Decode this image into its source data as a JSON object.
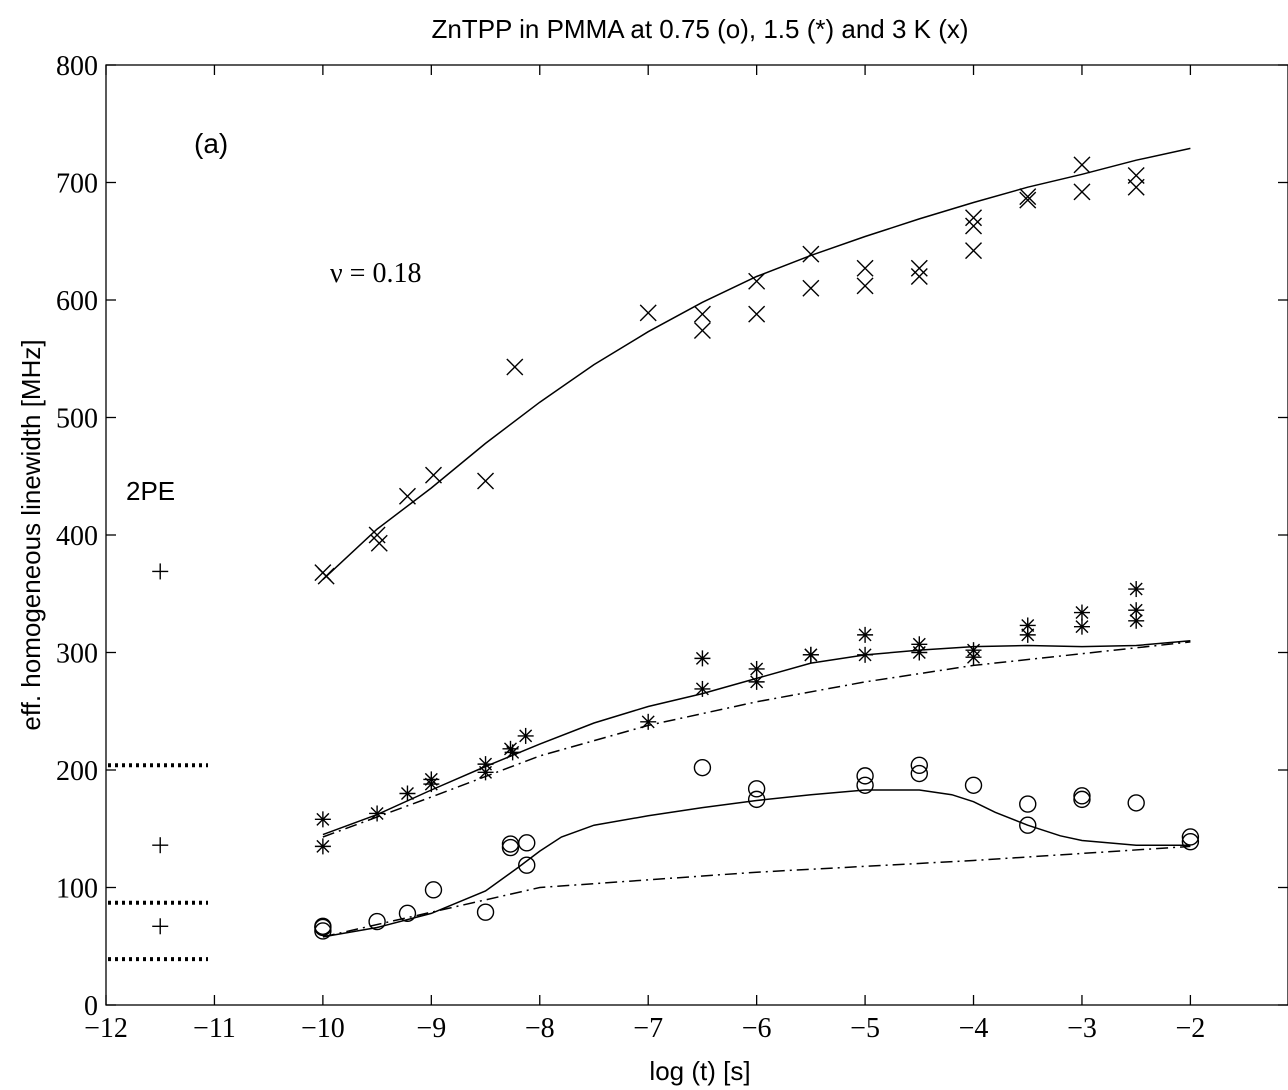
{
  "chart_data": {
    "type": "scatter",
    "title": "ZnTPP in PMMA at 0.75 (o), 1.5 (*) and 3 K (x)",
    "xlabel": "log (t) [s]",
    "ylabel": "eff. homogeneous linewidth  [MHz]",
    "xlim": [
      -12,
      -1.1
    ],
    "ylim": [
      0,
      800
    ],
    "xticks": [
      -12,
      -11,
      -10,
      -9,
      -8,
      -7,
      -6,
      -5,
      -4,
      -3,
      -2
    ],
    "xtick_labels": [
      "−12",
      "−11",
      "−10",
      "−9",
      "−8",
      "−7",
      "−6",
      "−5",
      "−4",
      "−3",
      "−2"
    ],
    "yticks": [
      0,
      100,
      200,
      300,
      400,
      500,
      600,
      700,
      800
    ],
    "ytick_labels": [
      "0",
      "100",
      "200",
      "300",
      "400",
      "500",
      "600",
      "700",
      "800"
    ],
    "grid": false,
    "annotations": {
      "panel": "(a)",
      "nu": "ν = 0.18",
      "pe": "2PE"
    },
    "series": [
      {
        "marker": "x",
        "points": [
          [
            -10,
            368
          ],
          [
            -9.97,
            365
          ],
          [
            -9.5,
            400
          ],
          [
            -9.48,
            393
          ],
          [
            -9.22,
            433
          ],
          [
            -8.98,
            451
          ],
          [
            -8.5,
            446
          ],
          [
            -8.23,
            543
          ],
          [
            -7,
            589
          ],
          [
            -6.5,
            588
          ],
          [
            -6.5,
            574
          ],
          [
            -6,
            616
          ],
          [
            -6,
            588
          ],
          [
            -5.5,
            639
          ],
          [
            -5.5,
            610
          ],
          [
            -5,
            627
          ],
          [
            -5,
            612
          ],
          [
            -4.5,
            627
          ],
          [
            -4.5,
            620
          ],
          [
            -4,
            670
          ],
          [
            -4,
            663
          ],
          [
            -4,
            642
          ],
          [
            -3.5,
            688
          ],
          [
            -3.5,
            685
          ],
          [
            -3,
            715
          ],
          [
            -3,
            692
          ],
          [
            -2.5,
            706
          ],
          [
            -2.5,
            696
          ]
        ]
      },
      {
        "marker": "*",
        "points": [
          [
            -10,
            158
          ],
          [
            -10,
            135
          ],
          [
            -9.5,
            163
          ],
          [
            -9.22,
            180
          ],
          [
            -9,
            192
          ],
          [
            -9,
            188
          ],
          [
            -8.5,
            205
          ],
          [
            -8.5,
            198
          ],
          [
            -8.27,
            218
          ],
          [
            -8.25,
            215
          ],
          [
            -8.13,
            229
          ],
          [
            -7,
            241
          ],
          [
            -6.5,
            295
          ],
          [
            -6.5,
            269
          ],
          [
            -6,
            286
          ],
          [
            -6,
            275
          ],
          [
            -5.5,
            298
          ],
          [
            -5.5,
            298
          ],
          [
            -5,
            315
          ],
          [
            -5,
            298
          ],
          [
            -4.5,
            307
          ],
          [
            -4.5,
            300
          ],
          [
            -4,
            302
          ],
          [
            -4,
            296
          ],
          [
            -3.5,
            323
          ],
          [
            -3.5,
            315
          ],
          [
            -3,
            334
          ],
          [
            -3,
            322
          ],
          [
            -2.5,
            354
          ],
          [
            -2.5,
            336
          ],
          [
            -2.5,
            327
          ]
        ]
      },
      {
        "marker": "o",
        "points": [
          [
            -10,
            67
          ],
          [
            -10,
            66
          ],
          [
            -10,
            63
          ],
          [
            -9.5,
            71
          ],
          [
            -9.22,
            78
          ],
          [
            -8.98,
            98
          ],
          [
            -8.5,
            79
          ],
          [
            -8.27,
            137
          ],
          [
            -8.27,
            134
          ],
          [
            -8.12,
            138
          ],
          [
            -8.12,
            119
          ],
          [
            -6.5,
            202
          ],
          [
            -6,
            184
          ],
          [
            -6,
            175
          ],
          [
            -5,
            195
          ],
          [
            -5,
            187
          ],
          [
            -4.5,
            204
          ],
          [
            -4.5,
            197
          ],
          [
            -4,
            187
          ],
          [
            -3.5,
            171
          ],
          [
            -3.5,
            153
          ],
          [
            -3,
            178
          ],
          [
            -3,
            175
          ],
          [
            -2.5,
            172
          ],
          [
            -2,
            143
          ],
          [
            -2,
            139
          ]
        ]
      },
      {
        "marker": "+",
        "points": [
          [
            -11.5,
            369
          ],
          [
            -11.5,
            136
          ],
          [
            -11.5,
            67
          ]
        ]
      }
    ],
    "fit_lines": [
      {
        "style": "solid",
        "points": [
          [
            -10,
            362
          ],
          [
            -9.5,
            405
          ],
          [
            -9,
            440
          ],
          [
            -8.5,
            478
          ],
          [
            -8,
            513
          ],
          [
            -7.5,
            545
          ],
          [
            -7,
            573
          ],
          [
            -6.5,
            598
          ],
          [
            -6,
            620
          ],
          [
            -5.5,
            638
          ],
          [
            -5,
            654
          ],
          [
            -4.5,
            669
          ],
          [
            -4,
            683
          ],
          [
            -3.5,
            696
          ],
          [
            -3,
            707
          ],
          [
            -2.5,
            719
          ],
          [
            -2,
            729
          ]
        ]
      },
      {
        "style": "solid",
        "points": [
          [
            -10,
            145
          ],
          [
            -9.5,
            162
          ],
          [
            -9,
            183
          ],
          [
            -8.5,
            203
          ],
          [
            -8,
            222
          ],
          [
            -7.5,
            240
          ],
          [
            -7,
            254
          ],
          [
            -6.5,
            265
          ],
          [
            -6,
            278
          ],
          [
            -5.5,
            291
          ],
          [
            -5,
            298
          ],
          [
            -4.5,
            302
          ],
          [
            -4,
            305
          ],
          [
            -3.5,
            306
          ],
          [
            -3,
            305
          ],
          [
            -2.5,
            306
          ],
          [
            -2,
            310
          ]
        ]
      },
      {
        "style": "dashdot",
        "points": [
          [
            -10,
            143
          ],
          [
            -9,
            177
          ],
          [
            -8,
            212
          ],
          [
            -7,
            238
          ],
          [
            -6,
            258
          ],
          [
            -5,
            275
          ],
          [
            -4,
            289
          ],
          [
            -3,
            299
          ],
          [
            -2,
            309
          ]
        ]
      },
      {
        "style": "solid",
        "points": [
          [
            -10,
            58
          ],
          [
            -9.5,
            66
          ],
          [
            -9,
            78
          ],
          [
            -8.5,
            97
          ],
          [
            -8.2,
            117
          ],
          [
            -8,
            131
          ],
          [
            -7.8,
            143
          ],
          [
            -7.5,
            153
          ],
          [
            -7,
            161
          ],
          [
            -6.5,
            168
          ],
          [
            -6,
            174
          ],
          [
            -5.5,
            179
          ],
          [
            -5,
            183
          ],
          [
            -4.5,
            183
          ],
          [
            -4.2,
            179
          ],
          [
            -4,
            173
          ],
          [
            -3.8,
            164
          ],
          [
            -3.5,
            153
          ],
          [
            -3.2,
            144
          ],
          [
            -3,
            140
          ],
          [
            -2.5,
            136
          ],
          [
            -2,
            136
          ]
        ]
      },
      {
        "style": "dashdot",
        "points": [
          [
            -10,
            58
          ],
          [
            -8,
            100
          ],
          [
            -6,
            113
          ],
          [
            -4,
            123
          ],
          [
            -2,
            135
          ]
        ]
      }
    ],
    "dotted_levels": [
      204,
      87,
      39
    ]
  }
}
